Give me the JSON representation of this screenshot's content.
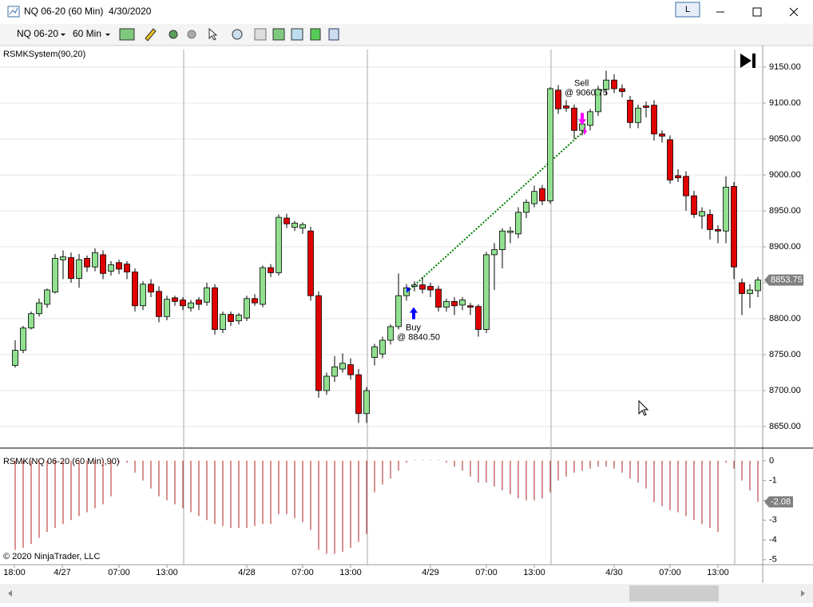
{
  "window": {
    "title": "NQ 06-20 (60 Min)  4/30/2020",
    "button": "L"
  },
  "toolbar": {
    "instrument": "NQ 06-20",
    "interval": "60 Min"
  },
  "chart_data": [
    {
      "type": "candlestick",
      "title": "RSMKSystem(90,20)",
      "up_color": "#90e090",
      "down_color": "#e00000",
      "ylim": [
        8620,
        9174.5
      ],
      "yticks": [
        {
          "value": 8650,
          "label": "8650.00"
        },
        {
          "value": 8700,
          "label": "8700.00"
        },
        {
          "value": 8750,
          "label": "8750.00"
        },
        {
          "value": 8800,
          "label": "8800.00"
        },
        {
          "value": 8850,
          "label": "8850.00"
        },
        {
          "value": 8900,
          "label": "8900.00"
        },
        {
          "value": 8950,
          "label": "8950.00"
        },
        {
          "value": 9000,
          "label": "9000.00"
        },
        {
          "value": 9050,
          "label": "9050.00"
        },
        {
          "value": 9100,
          "label": "9100.00"
        },
        {
          "value": 9150,
          "label": "9150.00"
        }
      ],
      "grid": true,
      "x_labels": [
        "18:00",
        "4/27",
        "07:00",
        "13:00",
        "4/28",
        "07:00",
        "13:00",
        "4/29",
        "07:00",
        "13:00",
        "4/30",
        "07:00",
        "13:00"
      ],
      "candles": [
        [
          8735,
          8770,
          8732,
          8756
        ],
        [
          8756,
          8790,
          8752,
          8787
        ],
        [
          8787,
          8810,
          8785,
          8807
        ],
        [
          8807,
          8828,
          8803,
          8822
        ],
        [
          8820,
          8842,
          8815,
          8840
        ],
        [
          8837,
          8890,
          8835,
          8884
        ],
        [
          8882,
          8895,
          8855,
          8886
        ],
        [
          8885,
          8892,
          8850,
          8856
        ],
        [
          8856,
          8890,
          8843,
          8882
        ],
        [
          8884,
          8888,
          8865,
          8872
        ],
        [
          8872,
          8898,
          8866,
          8892
        ],
        [
          8889,
          8895,
          8855,
          8863
        ],
        [
          8866,
          8880,
          8860,
          8875
        ],
        [
          8878,
          8882,
          8862,
          8869
        ],
        [
          8876,
          8880,
          8855,
          8865
        ],
        [
          8865,
          8870,
          8810,
          8818
        ],
        [
          8818,
          8852,
          8812,
          8848
        ],
        [
          8848,
          8855,
          8830,
          8837
        ],
        [
          8838,
          8845,
          8795,
          8803
        ],
        [
          8803,
          8832,
          8798,
          8827
        ],
        [
          8829,
          8832,
          8818,
          8824
        ],
        [
          8826,
          8830,
          8812,
          8818
        ],
        [
          8815,
          8826,
          8810,
          8822
        ],
        [
          8826,
          8830,
          8812,
          8820
        ],
        [
          8823,
          8850,
          8818,
          8843
        ],
        [
          8843,
          8848,
          8778,
          8785
        ],
        [
          8785,
          8810,
          8780,
          8806
        ],
        [
          8806,
          8810,
          8790,
          8796
        ],
        [
          8797,
          8808,
          8792,
          8805
        ],
        [
          8801,
          8832,
          8797,
          8828
        ],
        [
          8828,
          8834,
          8818,
          8822
        ],
        [
          8820,
          8874,
          8816,
          8871
        ],
        [
          8871,
          8876,
          8858,
          8864
        ],
        [
          8864,
          8945,
          8860,
          8941
        ],
        [
          8940,
          8946,
          8926,
          8932
        ],
        [
          8927,
          8936,
          8922,
          8933
        ],
        [
          8926,
          8934,
          8918,
          8931
        ],
        [
          8922,
          8928,
          8825,
          8832
        ],
        [
          8832,
          8838,
          8690,
          8700
        ],
        [
          8700,
          8725,
          8694,
          8720
        ],
        [
          8720,
          8748,
          8712,
          8733
        ],
        [
          8730,
          8752,
          8725,
          8738
        ],
        [
          8736,
          8745,
          8715,
          8722
        ],
        [
          8722,
          8730,
          8655,
          8668
        ],
        [
          8668,
          8705,
          8655,
          8700
        ],
        [
          8746,
          8765,
          8735,
          8761
        ],
        [
          8751,
          8775,
          8745,
          8770
        ],
        [
          8770,
          8792,
          8764,
          8789
        ],
        [
          8789,
          8863,
          8785,
          8832
        ],
        [
          8832,
          8848,
          8825,
          8843
        ],
        [
          8845,
          8852,
          8838,
          8847
        ],
        [
          8847,
          8858,
          8835,
          8841
        ],
        [
          8845,
          8850,
          8830,
          8840
        ],
        [
          8841,
          8846,
          8810,
          8816
        ],
        [
          8816,
          8828,
          8810,
          8824
        ],
        [
          8824,
          8830,
          8805,
          8818
        ],
        [
          8819,
          8830,
          8812,
          8826
        ],
        [
          8818,
          8822,
          8805,
          8816
        ],
        [
          8817,
          8820,
          8775,
          8785
        ],
        [
          8785,
          8893,
          8780,
          8889
        ],
        [
          8889,
          8905,
          8840,
          8896
        ],
        [
          8896,
          8926,
          8870,
          8922
        ],
        [
          8920,
          8928,
          8905,
          8922
        ],
        [
          8918,
          8955,
          8912,
          8948
        ],
        [
          8948,
          8966,
          8940,
          8962
        ],
        [
          8960,
          8985,
          8955,
          8977
        ],
        [
          8981,
          8986,
          8958,
          8964
        ],
        [
          8964,
          9122,
          8960,
          9120
        ],
        [
          9118,
          9125,
          9085,
          9092
        ],
        [
          9096,
          9104,
          9088,
          9093
        ],
        [
          9093,
          9098,
          9050,
          9062
        ],
        [
          9062,
          9078,
          9055,
          9071
        ],
        [
          9069,
          9092,
          9062,
          9088
        ],
        [
          9088,
          9124,
          9082,
          9119
        ],
        [
          9119,
          9145,
          9112,
          9132
        ],
        [
          9132,
          9140,
          9114,
          9120
        ],
        [
          9120,
          9126,
          9108,
          9116
        ],
        [
          9104,
          9110,
          9065,
          9073
        ],
        [
          9073,
          9098,
          9065,
          9093
        ],
        [
          9096,
          9102,
          9080,
          9094
        ],
        [
          9097,
          9104,
          9048,
          9057
        ],
        [
          9057,
          9062,
          9045,
          9054
        ],
        [
          9049,
          9055,
          8988,
          8993
        ],
        [
          8999,
          9008,
          8990,
          8996
        ],
        [
          8998,
          9005,
          8950,
          8971
        ],
        [
          8971,
          8978,
          8940,
          8945
        ],
        [
          8943,
          8955,
          8925,
          8949
        ],
        [
          8945,
          8952,
          8910,
          8924
        ],
        [
          8924,
          8930,
          8905,
          8922
        ],
        [
          8922,
          8998,
          8905,
          8983
        ],
        [
          8984,
          8990,
          8855,
          8872
        ],
        [
          8850,
          8856,
          8805,
          8835
        ],
        [
          8835,
          8848,
          8815,
          8840
        ],
        [
          8839,
          8858,
          8830,
          8853.75
        ]
      ],
      "last_price": 8853.75,
      "trades": [
        {
          "label": "Buy",
          "text": "@ 8840.50",
          "price": 8840.5,
          "bar": 49,
          "color": "#0000ff"
        },
        {
          "label": "Sell",
          "text": "@ 9060.75",
          "price": 9060.75,
          "bar": 71,
          "color": "#ff00ff"
        }
      ],
      "trade_line_color": "#008000"
    },
    {
      "type": "bar",
      "title": "RSMK(NQ 06-20 (60 Min),90)",
      "color": "#b22222",
      "positive_color": "#40b0d0",
      "ylim": [
        -5.25,
        0.56
      ],
      "yticks": [
        0,
        -1,
        -2,
        -3,
        -4,
        -5
      ],
      "values": [
        -4.5,
        -4.4,
        -4.2,
        -3.9,
        -3.6,
        -3.4,
        -3.2,
        -3.0,
        -2.8,
        -2.6,
        -2.4,
        -2.2,
        -1.8,
        -0.1,
        -0.1,
        -0.6,
        -1.0,
        -1.4,
        -1.8,
        -2.0,
        -2.2,
        -2.4,
        -2.6,
        -2.8,
        -3.0,
        -3.2,
        -3.3,
        -3.4,
        -3.4,
        -3.4,
        -3.3,
        -3.2,
        -3.2,
        -2.7,
        -2.7,
        -2.9,
        -3.1,
        -3.5,
        -4.5,
        -4.7,
        -4.7,
        -4.6,
        -4.4,
        -4.1,
        -3.7,
        -1.6,
        -1.2,
        -0.9,
        -0.5,
        -0.1,
        0.05,
        0.05,
        0.05,
        0.05,
        -0.1,
        -0.3,
        -0.5,
        -0.8,
        -1.1,
        -1.1,
        -1.3,
        -1.5,
        -1.7,
        -1.9,
        -2.0,
        -2.0,
        -1.9,
        -1.6,
        -1.0,
        -0.8,
        -0.6,
        -0.5,
        -0.4,
        -0.3,
        -0.3,
        -0.4,
        -0.6,
        -0.9,
        -1.1,
        -1.4,
        -2.1,
        -2.3,
        -2.5,
        -2.6,
        -2.8,
        -3.0,
        -3.2,
        -3.4,
        -3.6,
        -0.1,
        -0.4,
        -1.0,
        -1.5,
        -2.08
      ],
      "last_value": -2.08
    }
  ],
  "copyright": "© 2020 NinjaTrader, LLC"
}
